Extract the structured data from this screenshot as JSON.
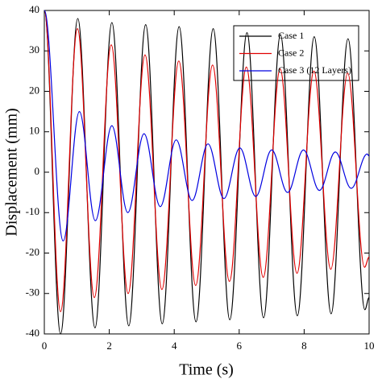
{
  "chart_data": {
    "type": "line",
    "x_label": "Time (s)",
    "y_label": "Displacement (mm)",
    "xlim": [
      0,
      10
    ],
    "xticks": [
      0,
      2,
      4,
      6,
      8,
      10
    ],
    "ylim": [
      -40,
      40
    ],
    "yticks": [
      -40,
      -30,
      -20,
      -10,
      0,
      10,
      20,
      30,
      40
    ],
    "grid": false,
    "legend": "upper right",
    "series": [
      {
        "name": "Case 1",
        "color": "#000000",
        "x": [
          0,
          0.5,
          1.03,
          1.56,
          2.08,
          2.6,
          3.12,
          3.63,
          4.15,
          4.67,
          5.2,
          5.71,
          6.24,
          6.75,
          7.27,
          7.79,
          8.31,
          8.83,
          9.35,
          9.87,
          10
        ],
        "values": [
          40,
          -40,
          38,
          -38.5,
          37,
          -38,
          36.5,
          -37.5,
          36,
          -37,
          35.5,
          -36.5,
          34.5,
          -36,
          34,
          -35.5,
          33.5,
          -35,
          33,
          -34,
          -31
        ]
      },
      {
        "name": "Case 2",
        "color": "#e00000",
        "x": [
          0,
          0.5,
          1.02,
          1.54,
          2.06,
          2.58,
          3.1,
          3.62,
          4.14,
          4.66,
          5.18,
          5.7,
          6.22,
          6.74,
          7.26,
          7.78,
          8.3,
          8.82,
          9.34,
          9.86,
          10
        ],
        "values": [
          40,
          -34.5,
          35.5,
          -31,
          31.5,
          -30,
          29,
          -29,
          27.5,
          -28,
          26.5,
          -27,
          26,
          -26,
          25.5,
          -25,
          25,
          -24,
          24.5,
          -23.5,
          -21
        ]
      },
      {
        "name": "Case 3 (12 Layers)",
        "color": "#0000e0",
        "x": [
          0,
          0.58,
          1.08,
          1.57,
          2.08,
          2.57,
          3.07,
          3.57,
          4.06,
          4.55,
          5.04,
          5.53,
          6.02,
          6.51,
          7.0,
          7.49,
          7.98,
          8.47,
          8.96,
          9.45,
          9.94,
          10
        ],
        "values": [
          40,
          -17,
          15,
          -12,
          11.5,
          -10,
          9.5,
          -8.5,
          8,
          -7,
          7,
          -6.5,
          6,
          -6,
          5.5,
          -5,
          5.5,
          -4.5,
          5,
          -4,
          4.5,
          4
        ]
      }
    ]
  }
}
